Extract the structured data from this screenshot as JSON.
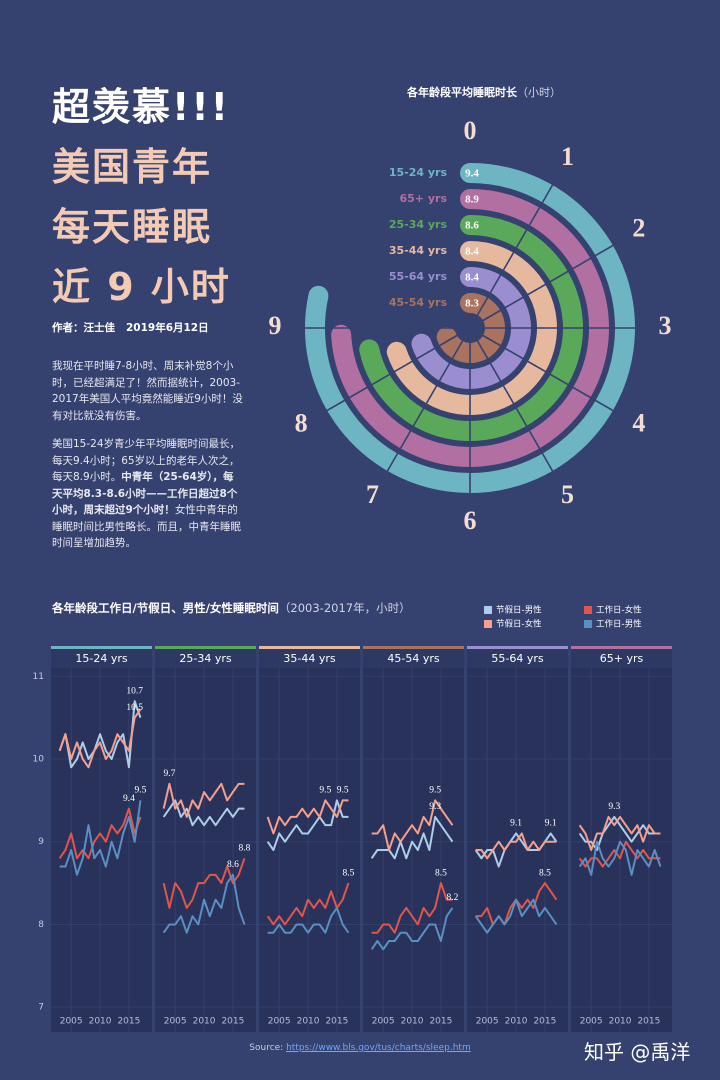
{
  "title_lines": [
    "超羡慕!!!",
    "美国青年",
    "每天睡眠",
    "近 9 小时"
  ],
  "byline": "作者：汪士佳   2019年6月12日",
  "paragraph_1": "我现在平时睡7-8小时、周末补觉8个小时，已经超满足了！然而据统计，2003-2017年美国人平均竟然能睡近9小时！没有对比就没有伤害。",
  "paragraph_2": {
    "normal_1": "美国15-24岁青少年平均睡眠时间最长，每天9.4小时；65岁以上的老年人次之，每天8.9小时。",
    "bold": "中青年（25-64岁），每天平均8.3-8.6小时——工作日超过8个小时，周末超过9个小时！",
    "normal_2": "女性中青年的睡眠时间比男性略长。而且，中青年睡眠时间呈增加趋势。"
  },
  "source_label": "Source: ",
  "source_url": "https://www.bls.gov/tus/charts/sleep.htm",
  "watermark": "知乎 @禹洋",
  "chart_data": [
    {
      "type": "radial_bar",
      "title": "各年龄段平均睡眠时长",
      "subtitle": "（小时）",
      "categories": [
        "15-24 yrs",
        "65+ yrs",
        "25-34 yrs",
        "35-44 yrs",
        "55-64 yrs",
        "45-54 yrs"
      ],
      "values": [
        9.4,
        8.9,
        8.6,
        8.4,
        8.4,
        8.3
      ],
      "colors": [
        "#6db5c3",
        "#b16fa2",
        "#5aa95a",
        "#e6b89e",
        "#9a8ed0",
        "#a9735f"
      ],
      "ylim": [
        0,
        12
      ],
      "yticks": [
        0,
        1,
        2,
        3,
        4,
        5,
        6,
        7,
        8,
        9
      ]
    },
    {
      "type": "line_small_multiples",
      "title": "各年龄段工作日/节假日、男性/女性睡眠时间",
      "subtitle": "（2003-2017年，小时）",
      "x": [
        2003,
        2004,
        2005,
        2006,
        2007,
        2008,
        2009,
        2010,
        2011,
        2012,
        2013,
        2014,
        2015,
        2016,
        2017
      ],
      "xlim": [
        2001.5,
        2019
      ],
      "xticks": [
        2005,
        2010,
        2015
      ],
      "ylim": [
        6.7,
        11.1
      ],
      "yticks": [
        7,
        8,
        9,
        10,
        11
      ],
      "grid": true,
      "series": [
        {
          "name": "节假日-男性",
          "color": "#aecde8"
        },
        {
          "name": "节假日-女性",
          "color": "#f4a08c"
        },
        {
          "name": "工作日-女性",
          "color": "#e0564c"
        },
        {
          "name": "工作日-男性",
          "color": "#5b8fc2"
        }
      ],
      "panels": [
        {
          "title": "15-24 yrs",
          "color": "#6db5c3",
          "series": [
            {
              "values": [
                10.1,
                10.3,
                9.9,
                10.0,
                10.2,
                10.0,
                10.1,
                10.3,
                10.1,
                10.0,
                10.2,
                10.3,
                9.9,
                10.7,
                10.5
              ],
              "labeled": [
                13
              ]
            },
            {
              "values": [
                10.1,
                10.3,
                10.0,
                10.2,
                10.0,
                9.9,
                10.1,
                10.2,
                10.0,
                10.1,
                10.3,
                10.2,
                10.1,
                10.5,
                10.6
              ],
              "labeled": [
                13
              ]
            },
            {
              "values": [
                8.8,
                8.9,
                9.1,
                8.8,
                8.9,
                8.8,
                9.0,
                9.1,
                9.0,
                9.2,
                9.1,
                9.2,
                9.4,
                9.1,
                9.3
              ],
              "labeled": [
                12
              ]
            },
            {
              "values": [
                8.7,
                8.7,
                8.9,
                8.6,
                8.8,
                9.2,
                8.8,
                8.9,
                8.7,
                9.0,
                8.8,
                9.1,
                9.3,
                9.0,
                9.5
              ],
              "labeled": [
                14
              ]
            }
          ]
        },
        {
          "title": "25-34 yrs",
          "color": "#5aa95a",
          "series": [
            {
              "values": [
                9.3,
                9.4,
                9.5,
                9.3,
                9.4,
                9.2,
                9.3,
                9.2,
                9.3,
                9.2,
                9.3,
                9.4,
                9.3,
                9.4,
                9.4
              ],
              "labeled": []
            },
            {
              "values": [
                9.4,
                9.7,
                9.4,
                9.5,
                9.3,
                9.5,
                9.4,
                9.6,
                9.5,
                9.6,
                9.7,
                9.5,
                9.6,
                9.7,
                9.7
              ],
              "labeled": [
                1
              ]
            },
            {
              "values": [
                8.5,
                8.2,
                8.5,
                8.4,
                8.2,
                8.3,
                8.5,
                8.5,
                8.6,
                8.6,
                8.5,
                8.7,
                8.5,
                8.6,
                8.8
              ],
              "labeled": [
                14
              ]
            },
            {
              "values": [
                7.9,
                8.0,
                8.0,
                8.1,
                7.9,
                8.1,
                8.0,
                8.3,
                8.1,
                8.3,
                8.2,
                8.5,
                8.6,
                8.2,
                8.0
              ],
              "labeled": [
                12
              ]
            }
          ]
        },
        {
          "title": "35-44 yrs",
          "color": "#e6b89e",
          "series": [
            {
              "values": [
                9.0,
                8.9,
                9.1,
                9.0,
                9.1,
                9.2,
                9.1,
                9.1,
                9.2,
                9.3,
                9.2,
                9.2,
                9.5,
                9.3,
                9.3
              ],
              "labeled": []
            },
            {
              "values": [
                9.3,
                9.1,
                9.3,
                9.2,
                9.3,
                9.3,
                9.4,
                9.3,
                9.4,
                9.3,
                9.5,
                9.4,
                9.3,
                9.5,
                9.5
              ],
              "labeled": [
                10,
                13
              ]
            },
            {
              "values": [
                8.1,
                8.0,
                8.1,
                8.0,
                8.1,
                8.2,
                8.1,
                8.3,
                8.2,
                8.3,
                8.2,
                8.4,
                8.2,
                8.3,
                8.5
              ],
              "labeled": [
                14
              ]
            },
            {
              "values": [
                7.9,
                7.9,
                8.0,
                7.9,
                7.9,
                8.0,
                8.0,
                7.9,
                8.0,
                8.0,
                7.9,
                8.1,
                8.2,
                8.0,
                7.9
              ],
              "labeled": []
            }
          ]
        },
        {
          "title": "45-54 yrs",
          "color": "#a9735f",
          "series": [
            {
              "values": [
                8.8,
                8.9,
                8.9,
                8.9,
                8.8,
                9.0,
                8.8,
                9.0,
                8.9,
                9.1,
                8.9,
                9.3,
                9.2,
                9.1,
                9.0
              ],
              "labeled": [
                11
              ]
            },
            {
              "values": [
                9.1,
                9.1,
                9.2,
                8.9,
                9.1,
                9.0,
                9.1,
                9.2,
                9.1,
                9.3,
                9.2,
                9.5,
                9.4,
                9.3,
                9.2
              ],
              "labeled": [
                11
              ]
            },
            {
              "values": [
                7.9,
                7.9,
                8.0,
                8.0,
                7.9,
                8.1,
                8.2,
                8.1,
                8.0,
                8.2,
                8.1,
                8.2,
                8.5,
                8.3,
                8.3
              ],
              "labeled": [
                12
              ]
            },
            {
              "values": [
                7.7,
                7.8,
                7.7,
                7.8,
                7.8,
                7.9,
                7.9,
                7.8,
                7.8,
                7.9,
                8.0,
                8.0,
                7.8,
                8.1,
                8.2
              ],
              "labeled": [
                14
              ]
            }
          ]
        },
        {
          "title": "55-64 yrs",
          "color": "#9a8ed0",
          "series": [
            {
              "values": [
                8.9,
                8.8,
                8.9,
                8.9,
                8.7,
                8.9,
                9.0,
                9.1,
                9.0,
                8.9,
                8.9,
                8.9,
                9.0,
                9.1,
                9.0
              ],
              "labeled": [
                7,
                13
              ]
            },
            {
              "values": [
                8.9,
                8.9,
                8.8,
                8.9,
                9.0,
                8.9,
                9.0,
                9.0,
                9.1,
                8.9,
                9.0,
                8.9,
                9.0,
                9.0,
                9.0
              ],
              "labeled": []
            },
            {
              "values": [
                8.1,
                8.1,
                8.2,
                8.0,
                8.1,
                8.0,
                8.2,
                8.3,
                8.2,
                8.3,
                8.2,
                8.4,
                8.5,
                8.4,
                8.3
              ],
              "labeled": [
                12
              ]
            },
            {
              "values": [
                8.1,
                8.0,
                7.9,
                8.0,
                8.1,
                8.0,
                8.1,
                8.3,
                8.1,
                8.2,
                8.3,
                8.1,
                8.2,
                8.1,
                8.0
              ],
              "labeled": []
            }
          ]
        },
        {
          "title": "65+ yrs",
          "color": "#b16fa2",
          "series": [
            {
              "values": [
                9.1,
                9.0,
                9.0,
                8.9,
                9.1,
                9.2,
                9.3,
                9.2,
                9.1,
                9.0,
                9.1,
                9.2,
                9.1,
                9.1,
                9.1
              ],
              "labeled": [
                6
              ]
            },
            {
              "values": [
                9.2,
                9.1,
                8.9,
                9.1,
                9.1,
                9.3,
                9.2,
                9.3,
                9.2,
                9.1,
                9.2,
                9.0,
                9.2,
                9.1,
                9.1
              ],
              "labeled": []
            },
            {
              "values": [
                8.8,
                8.7,
                8.8,
                8.8,
                8.7,
                8.8,
                8.9,
                8.8,
                9.0,
                8.9,
                8.8,
                8.9,
                8.8,
                8.8,
                8.8
              ],
              "labeled": []
            },
            {
              "values": [
                8.7,
                8.8,
                8.6,
                9.0,
                8.8,
                8.7,
                8.8,
                9.0,
                8.9,
                8.6,
                8.9,
                8.8,
                8.7,
                8.9,
                8.7
              ],
              "labeled": []
            }
          ]
        }
      ]
    }
  ]
}
